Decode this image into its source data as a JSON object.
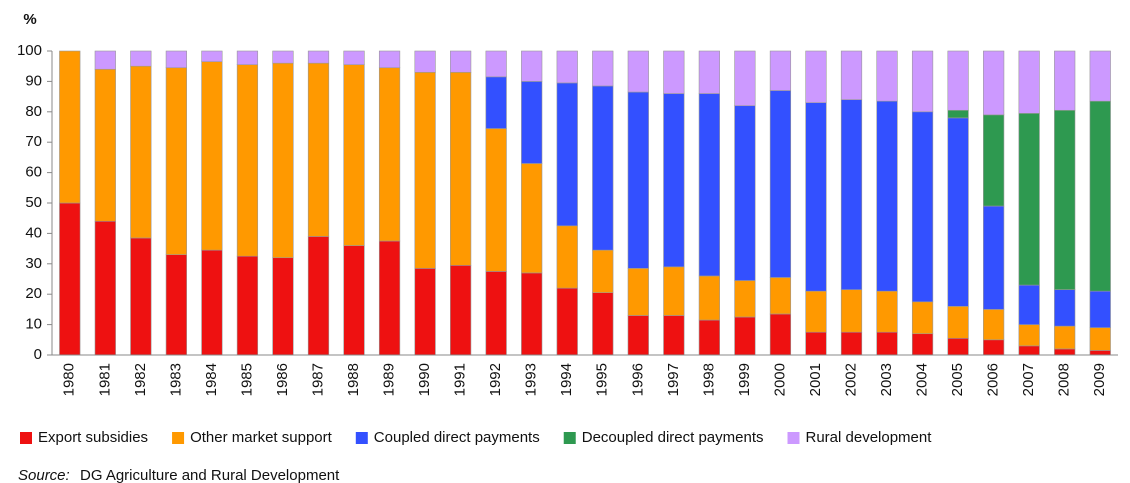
{
  "chart_data": {
    "type": "stacked_bar",
    "y_label": "%",
    "categories": [
      "1980",
      "1981",
      "1982",
      "1983",
      "1984",
      "1985",
      "1986",
      "1987",
      "1988",
      "1989",
      "1990",
      "1991",
      "1992",
      "1993",
      "1994",
      "1995",
      "1996",
      "1997",
      "1998",
      "1999",
      "2000",
      "2001",
      "2002",
      "2003",
      "2004",
      "2005",
      "2006",
      "2007",
      "2008",
      "2009"
    ],
    "series": [
      {
        "name": "Export subsidies",
        "color": "#ee1111",
        "values": [
          50,
          44,
          38.5,
          33,
          34.5,
          32.5,
          32,
          39,
          36,
          37.5,
          28.5,
          29.5,
          27.5,
          27,
          22,
          20.5,
          13,
          13,
          11.5,
          12.5,
          13.5,
          7.5,
          7.5,
          7.5,
          7,
          5.5,
          5,
          3,
          2,
          1.5
        ]
      },
      {
        "name": "Other market support",
        "color": "#ff9900",
        "values": [
          50,
          50,
          56.5,
          61.5,
          62,
          63,
          64,
          57,
          59.5,
          57,
          64.5,
          63.5,
          47,
          36,
          20.5,
          14,
          15.5,
          16,
          14.5,
          12,
          12,
          13.5,
          14,
          13.5,
          10.5,
          10.5,
          10,
          7,
          7.5,
          7.5
        ]
      },
      {
        "name": "Coupled direct payments",
        "color": "#3350ff",
        "values": [
          0,
          0,
          0,
          0,
          0,
          0,
          0,
          0,
          0,
          0,
          0,
          0,
          17,
          27,
          47,
          54,
          58,
          57,
          60,
          57.5,
          61.5,
          62,
          62.5,
          62.5,
          62.5,
          62,
          34,
          13,
          12,
          12
        ]
      },
      {
        "name": "Decoupled direct payments",
        "color": "#2e9950",
        "values": [
          0,
          0,
          0,
          0,
          0,
          0,
          0,
          0,
          0,
          0,
          0,
          0,
          0,
          0,
          0,
          0,
          0,
          0,
          0,
          0,
          0,
          0,
          0,
          0,
          0,
          2.5,
          30,
          56.5,
          59,
          62.5
        ]
      },
      {
        "name": "Rural development",
        "color": "#cc99ff",
        "values": [
          0,
          6,
          5,
          5.5,
          3.5,
          4.5,
          4,
          4,
          4.5,
          5.5,
          7,
          7,
          8.5,
          10,
          10.5,
          11.5,
          13.5,
          14,
          14,
          18,
          13,
          17,
          16,
          16.5,
          20,
          19.5,
          21,
          20.5,
          19.5,
          16.5
        ]
      }
    ],
    "ylim": [
      0,
      100
    ],
    "yticks": [
      0,
      10,
      20,
      30,
      40,
      50,
      60,
      70,
      80,
      90,
      100
    ],
    "legend": "bottom",
    "source_label": "Source:",
    "source": "DG Agriculture and Rural Development"
  }
}
